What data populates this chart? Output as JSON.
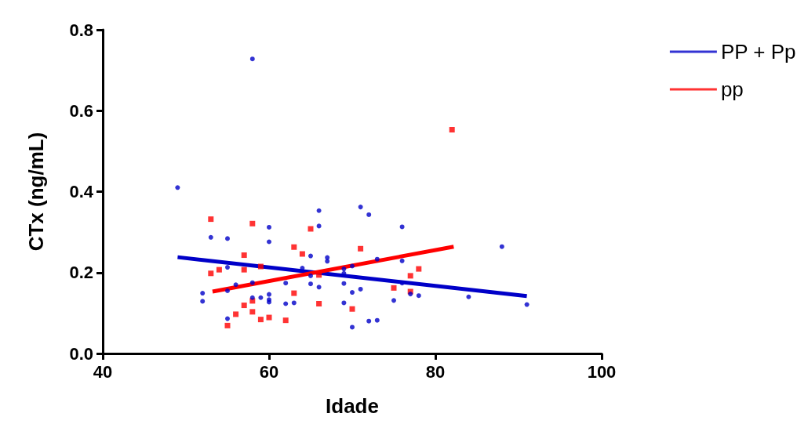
{
  "chart_data": {
    "type": "scatter",
    "xlabel": "Idade",
    "ylabel": "CTx (ng/mL)",
    "xlim": [
      40,
      100
    ],
    "xticks": [
      40,
      60,
      80,
      100
    ],
    "ylim": [
      0,
      0.8
    ],
    "yticks": [
      {
        "value": 0,
        "label": "0.0"
      },
      0.2,
      0.4,
      0.6,
      0.8
    ],
    "grid": false,
    "legend": "top right",
    "series": [
      {
        "name": "PP + Pp",
        "color": "#0000c8",
        "marker": "circle",
        "x": [
          49,
          53,
          55,
          60,
          60,
          55,
          56,
          58,
          52,
          52,
          55,
          58,
          59,
          60,
          60,
          60,
          62,
          62,
          63,
          64,
          65,
          65,
          65,
          55,
          66,
          66,
          71,
          72,
          76,
          67,
          67,
          66,
          69,
          69,
          70,
          73,
          76,
          76,
          69,
          70,
          71,
          69,
          77,
          78,
          75,
          70,
          72,
          73,
          58,
          88,
          84,
          91
        ],
        "values": [
          0.41,
          0.287,
          0.284,
          0.312,
          0.276,
          0.213,
          0.17,
          0.175,
          0.149,
          0.129,
          0.155,
          0.138,
          0.138,
          0.146,
          0.133,
          0.127,
          0.174,
          0.123,
          0.125,
          0.211,
          0.241,
          0.192,
          0.172,
          0.086,
          0.353,
          0.315,
          0.362,
          0.343,
          0.313,
          0.237,
          0.228,
          0.164,
          0.209,
          0.198,
          0.216,
          0.233,
          0.229,
          0.174,
          0.173,
          0.151,
          0.159,
          0.125,
          0.147,
          0.143,
          0.131,
          0.065,
          0.08,
          0.082,
          0.728,
          0.264,
          0.14,
          0.121
        ]
      },
      {
        "name": "pp",
        "color": "#ff0000",
        "marker": "square",
        "x": [
          53,
          58,
          65,
          63,
          64,
          57,
          54,
          57,
          59,
          53,
          63,
          57,
          58,
          56,
          58,
          59,
          60,
          62,
          55,
          71,
          66,
          66,
          70,
          75,
          77,
          78,
          77,
          82
        ],
        "values": [
          0.332,
          0.321,
          0.308,
          0.263,
          0.246,
          0.243,
          0.207,
          0.207,
          0.215,
          0.198,
          0.149,
          0.119,
          0.13,
          0.097,
          0.103,
          0.084,
          0.089,
          0.082,
          0.069,
          0.259,
          0.194,
          0.123,
          0.11,
          0.162,
          0.192,
          0.209,
          0.153,
          0.553
        ]
      },
      {
        "type": "line",
        "color": "#0000c8",
        "marker": "none",
        "x": [
          49,
          91
        ],
        "values": [
          0.238,
          0.142
        ]
      },
      {
        "type": "line",
        "color": "#ff0000",
        "marker": "none",
        "x": [
          53.2,
          82.2
        ],
        "values": [
          0.153,
          0.264
        ]
      }
    ]
  }
}
